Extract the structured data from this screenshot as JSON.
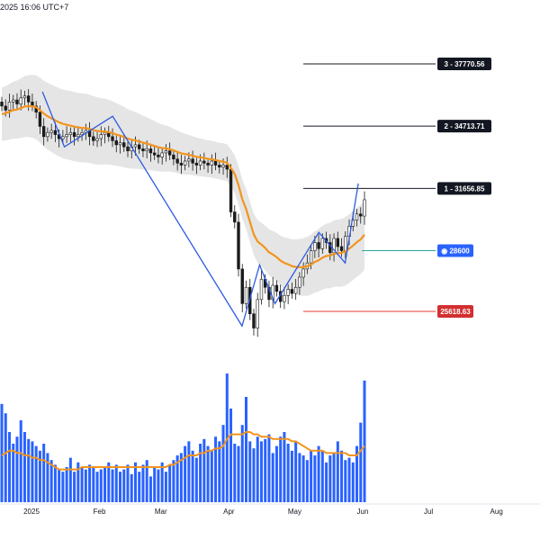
{
  "header": {
    "timestamp": "2025 16:06 UTC+7"
  },
  "colors": {
    "candle_up": "#1a1a1a",
    "candle_down": "#1a1a1a",
    "ema": "#f2941e",
    "zigzag": "#2e5be0",
    "band": "#cfcfcf",
    "volume": "#2962ff",
    "level_black": "#131722",
    "level_teal": "#26a69a",
    "level_red": "#e53935",
    "label_dark": "#131722",
    "label_blue": "#2962ff",
    "label_red": "#d32f2f"
  },
  "chart_data": {
    "type": "candlestick",
    "title": "",
    "x_ticks": [
      "2025",
      "Feb",
      "Mar",
      "Apr",
      "May",
      "Jun",
      "Jul",
      "Aug"
    ],
    "ylim": [
      23500,
      40000
    ],
    "levels": [
      {
        "id": "level-3",
        "label": "3 - 37770.56",
        "value": 37770.56,
        "style": "dark"
      },
      {
        "id": "level-2",
        "label": "2 - 34713.71",
        "value": 34713.71,
        "style": "dark"
      },
      {
        "id": "level-1",
        "label": "1 - 31656.85",
        "value": 31656.85,
        "style": "dark"
      },
      {
        "id": "level-current",
        "label": "28600",
        "value": 28600,
        "style": "blue"
      },
      {
        "id": "level-stop",
        "label": "25618.63",
        "value": 25618.63,
        "style": "red"
      }
    ],
    "candles_close": [
      35700,
      35500,
      35900,
      36000,
      35800,
      36100,
      36200,
      35900,
      35700,
      35400,
      34700,
      34200,
      34400,
      34500,
      34300,
      34100,
      34200,
      34300,
      34400,
      34200,
      34300,
      34400,
      34500,
      34200,
      34000,
      34100,
      34300,
      34400,
      34200,
      34000,
      33800,
      33900,
      33700,
      33500,
      33700,
      33800,
      33600,
      33500,
      33600,
      33400,
      33300,
      33200,
      33400,
      33500,
      33300,
      33100,
      32900,
      32800,
      33000,
      33100,
      32900,
      32800,
      33000,
      32900,
      32800,
      33000,
      32800,
      32700,
      32800,
      32600,
      30500,
      30000,
      27700,
      26000,
      26800,
      25500,
      24800,
      26200,
      27200,
      26800,
      26200,
      26900,
      26600,
      26100,
      26400,
      26700,
      26500,
      26800,
      27300,
      27700,
      28000,
      28600,
      29000,
      28700,
      29200,
      29000,
      28500,
      29200,
      28800,
      28600,
      29300,
      29800,
      30100,
      30400,
      30300,
      31100
    ],
    "ema": [
      35300,
      35350,
      35420,
      35500,
      35530,
      35600,
      35680,
      35700,
      35690,
      35640,
      35500,
      35330,
      35200,
      35100,
      35000,
      34900,
      34830,
      34780,
      34740,
      34690,
      34650,
      34630,
      34620,
      34580,
      34520,
      34480,
      34460,
      34450,
      34420,
      34370,
      34300,
      34250,
      34180,
      34100,
      34050,
      34010,
      33960,
      33900,
      33860,
      33800,
      33740,
      33680,
      33640,
      33620,
      33580,
      33520,
      33450,
      33380,
      33340,
      33310,
      33260,
      33210,
      33180,
      33150,
      33110,
      33090,
      33050,
      33000,
      32970,
      32920,
      32660,
      32370,
      31820,
      31120,
      30640,
      30010,
      29400,
      29050,
      28900,
      28730,
      28520,
      28410,
      28280,
      28110,
      28000,
      27930,
      27840,
      27800,
      27790,
      27800,
      27830,
      27920,
      28050,
      28130,
      28260,
      28340,
      28360,
      28450,
      28480,
      28490,
      28570,
      28700,
      28850,
      29020,
      29150,
      29390
    ],
    "zigzag": [
      {
        "date": "2025-01-06",
        "value": 36400
      },
      {
        "date": "2025-01-16",
        "value": 33700
      },
      {
        "date": "2025-02-07",
        "value": 35200
      },
      {
        "date": "2025-04-07",
        "value": 24900
      },
      {
        "date": "2025-04-15",
        "value": 27900
      },
      {
        "date": "2025-04-22",
        "value": 26000
      },
      {
        "date": "2025-05-12",
        "value": 29500
      },
      {
        "date": "2025-05-24",
        "value": 28000
      },
      {
        "date": "2025-05-30",
        "value": 31900
      }
    ],
    "volume": [
      42,
      38,
      30,
      25,
      28,
      35,
      30,
      27,
      26,
      24,
      22,
      25,
      21,
      18,
      16,
      14,
      13,
      15,
      19,
      13,
      17,
      15,
      14,
      16,
      15,
      13,
      14,
      15,
      17,
      14,
      16,
      13,
      14,
      16,
      12,
      17,
      13,
      16,
      18,
      11,
      15,
      14,
      17,
      13,
      16,
      18,
      20,
      21,
      24,
      26,
      22,
      19,
      25,
      27,
      24,
      22,
      28,
      26,
      33,
      55,
      40,
      25,
      24,
      33,
      45,
      26,
      23,
      28,
      26,
      27,
      29,
      21,
      24,
      28,
      30,
      25,
      22,
      26,
      21,
      20,
      18,
      22,
      20,
      24,
      22,
      17,
      20,
      21,
      26,
      22,
      18,
      19,
      17,
      24,
      34,
      52
    ],
    "volume_ma": [
      20,
      21,
      22,
      22,
      21,
      21,
      20,
      20,
      19,
      19,
      18,
      18,
      17,
      16,
      15,
      14,
      14,
      14,
      14,
      14,
      14,
      15,
      15,
      15,
      15,
      15,
      15,
      15,
      15,
      15,
      15,
      15,
      15,
      15,
      15,
      15,
      15,
      15,
      15,
      15,
      15,
      15,
      15,
      15,
      16,
      16,
      17,
      18,
      19,
      20,
      20,
      20,
      21,
      21,
      22,
      22,
      23,
      23,
      24,
      27,
      29,
      29,
      29,
      29,
      30,
      30,
      29,
      29,
      28,
      28,
      28,
      27,
      27,
      27,
      27,
      27,
      26,
      26,
      25,
      24,
      23,
      22,
      22,
      22,
      22,
      21,
      21,
      21,
      21,
      21,
      21,
      20,
      20,
      20,
      22,
      24
    ]
  }
}
